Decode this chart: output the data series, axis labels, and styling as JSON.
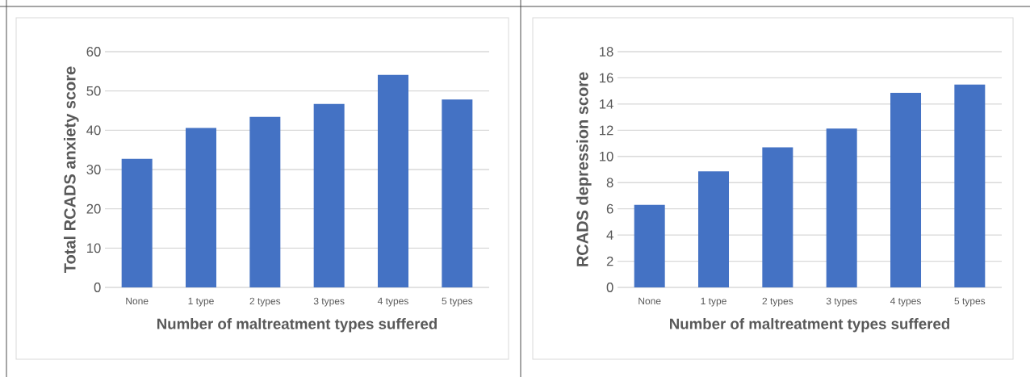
{
  "chart_data": [
    {
      "type": "bar",
      "ylabel": "Total RCADS anxiety score",
      "xlabel": "Number of maltreatment types suffered",
      "categories": [
        "None",
        "1 type",
        "2 types",
        "3 types",
        "4 types",
        "5 types"
      ],
      "values": [
        32.7,
        40.6,
        43.4,
        46.7,
        54.1,
        47.8
      ],
      "color": "#4472c4",
      "ylim": [
        0,
        60
      ],
      "yticks": [
        0,
        10,
        20,
        30,
        40,
        50,
        60
      ],
      "grid": "y"
    },
    {
      "type": "bar",
      "ylabel": "RCADS depression score",
      "xlabel": "Number of maltreatment types suffered",
      "categories": [
        "None",
        "1 type",
        "2 types",
        "3 types",
        "4 types",
        "5 types"
      ],
      "values": [
        6.3,
        8.86,
        10.7,
        12.13,
        14.85,
        15.49
      ],
      "color": "#4472c4",
      "ylim": [
        0,
        18
      ],
      "yticks": [
        0,
        2,
        4,
        6,
        8,
        10,
        12,
        14,
        16,
        18
      ],
      "grid": "y"
    }
  ]
}
